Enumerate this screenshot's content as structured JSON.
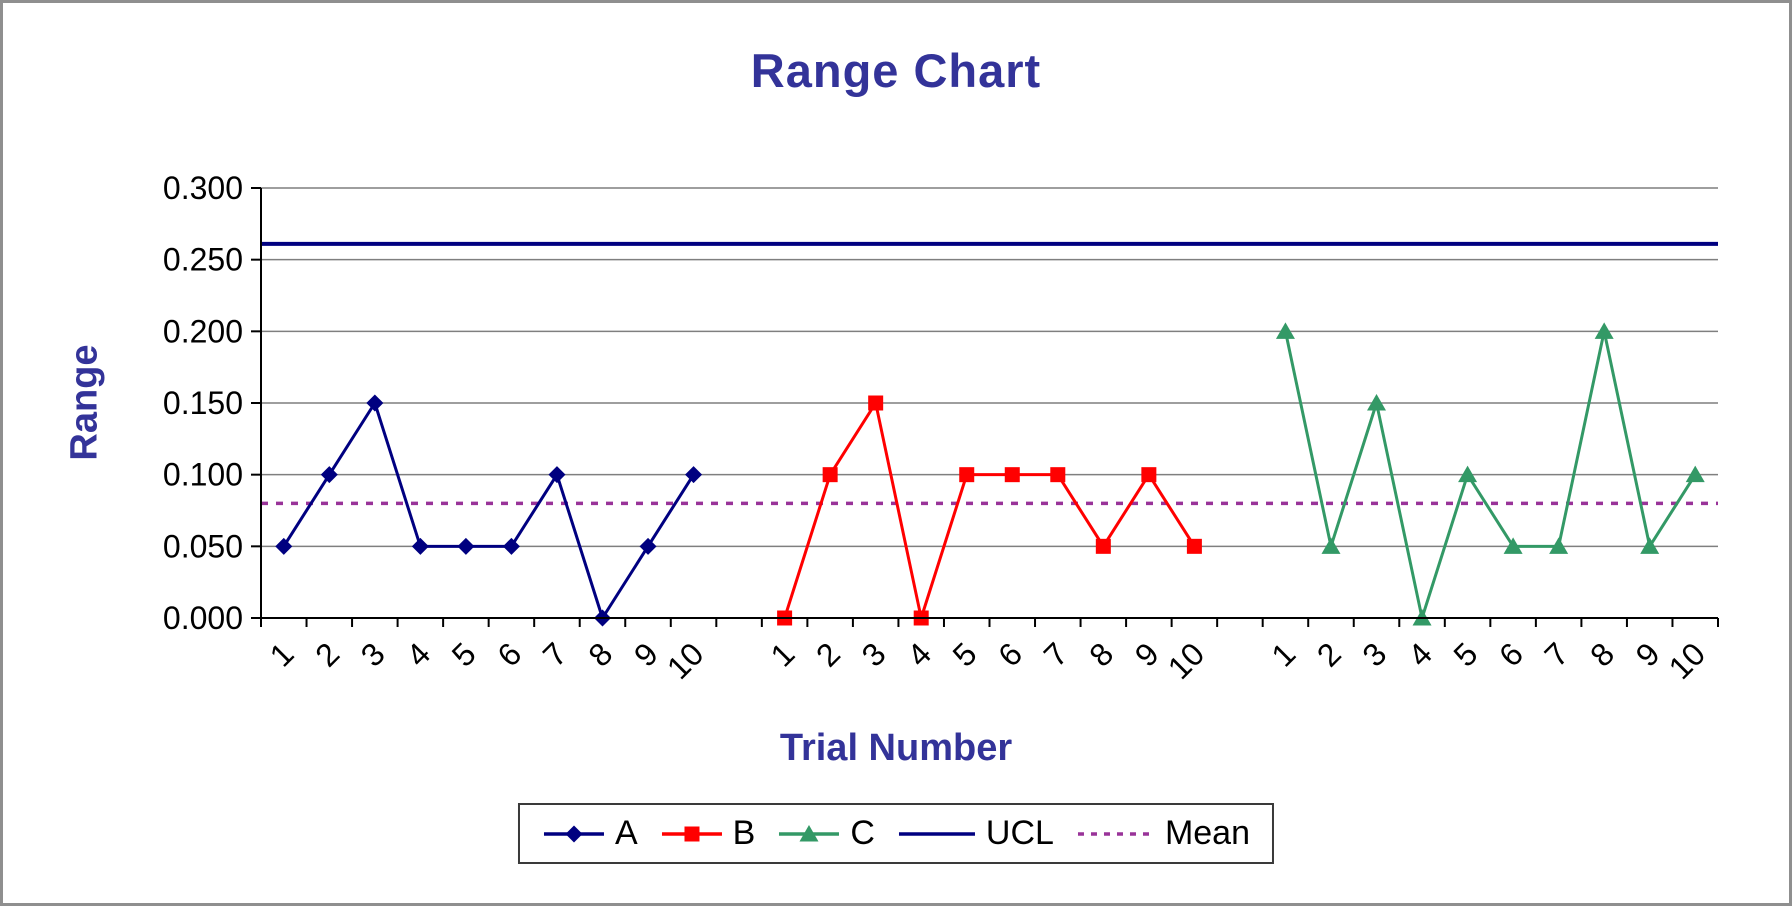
{
  "chart": {
    "title": "Range Chart",
    "x_axis_title": "Trial Number",
    "y_axis_title": "Range"
  },
  "colors": {
    "heading_text": "#333399",
    "tick_text": "#000000",
    "gridline": "#7f7f7f",
    "axis_line": "#000000",
    "frame_border": "#8f8f8f",
    "background": "#ffffff",
    "series_a": "#000080",
    "series_b": "#ff0000",
    "series_c": "#339966",
    "ucl": "#000080",
    "mean": "#993399"
  },
  "chart_data": {
    "type": "line",
    "title": "Range Chart",
    "xlabel": "Trial Number",
    "ylabel": "Range",
    "ylim": [
      0.0,
      0.3
    ],
    "y_tick_labels": [
      "0.000",
      "0.050",
      "0.100",
      "0.150",
      "0.200",
      "0.250",
      "0.300"
    ],
    "x_tick_labels_per_group": [
      "1",
      "2",
      "3",
      "4",
      "5",
      "6",
      "7",
      "8",
      "9",
      "10"
    ],
    "group_gap_slots": 1,
    "grid": "horizontal",
    "legend_position": "bottom",
    "series": [
      {
        "name": "A",
        "marker": "diamond",
        "color": "#000080",
        "values": [
          0.05,
          0.1,
          0.15,
          0.05,
          0.05,
          0.05,
          0.1,
          0.0,
          0.05,
          0.1
        ]
      },
      {
        "name": "B",
        "marker": "square",
        "color": "#ff0000",
        "values": [
          0.0,
          0.1,
          0.15,
          0.0,
          0.1,
          0.1,
          0.1,
          0.05,
          0.1,
          0.05
        ]
      },
      {
        "name": "C",
        "marker": "triangle",
        "color": "#339966",
        "values": [
          0.2,
          0.05,
          0.15,
          0.0,
          0.1,
          0.05,
          0.05,
          0.2,
          0.05,
          0.1
        ]
      }
    ],
    "reference_lines": [
      {
        "name": "UCL",
        "value": 0.261,
        "color": "#000080",
        "style": "solid"
      },
      {
        "name": "Mean",
        "value": 0.08,
        "color": "#993399",
        "style": "dashed"
      }
    ]
  }
}
